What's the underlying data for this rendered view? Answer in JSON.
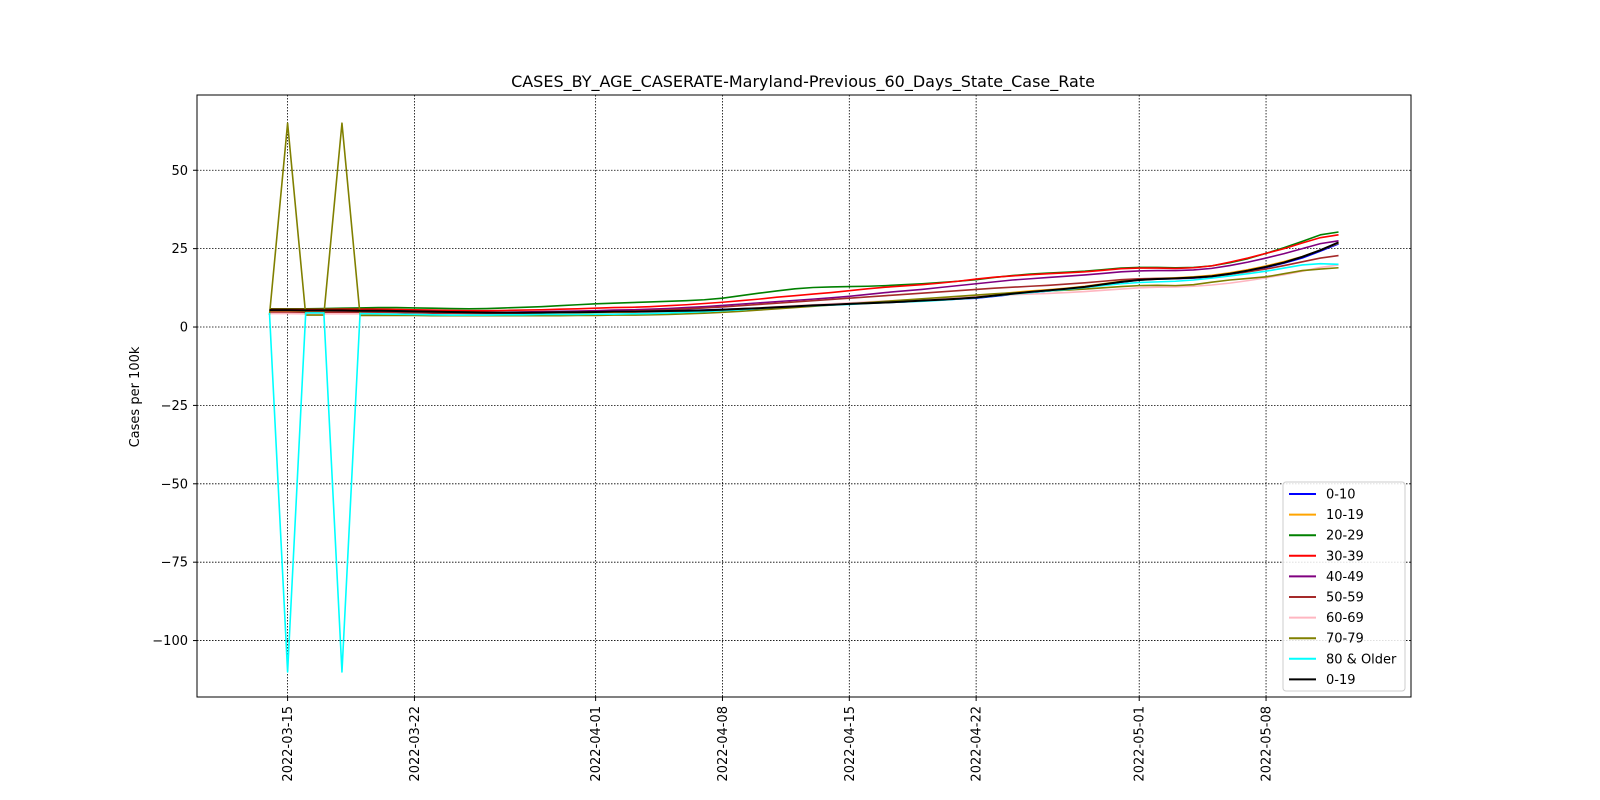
{
  "chart_data": {
    "type": "line",
    "title": "CASES_BY_AGE_CASERATE-Maryland-Previous_60_Days_State_Case_Rate",
    "xlabel": "",
    "ylabel": "Cases per 100k",
    "ylim": [
      -118,
      74
    ],
    "xlim": [
      "2022-03-10",
      "2022-05-16"
    ],
    "grid": true,
    "legend_position": "lower-right",
    "y_ticks": [
      50,
      25,
      0,
      -25,
      -50,
      -75,
      -100
    ],
    "y_tick_labels": [
      "50",
      "25",
      "0",
      "−25",
      "−50",
      "−75",
      "−100"
    ],
    "x_ticks": [
      "2022-03-15",
      "2022-03-22",
      "2022-04-01",
      "2022-04-08",
      "2022-04-15",
      "2022-04-22",
      "2022-05-01",
      "2022-05-08"
    ],
    "x_dates": [
      "2022-03-14",
      "2022-03-15",
      "2022-03-16",
      "2022-03-17",
      "2022-03-18",
      "2022-03-19",
      "2022-03-20",
      "2022-03-21",
      "2022-03-22",
      "2022-03-23",
      "2022-03-24",
      "2022-03-25",
      "2022-03-26",
      "2022-03-27",
      "2022-03-28",
      "2022-03-29",
      "2022-03-30",
      "2022-03-31",
      "2022-04-01",
      "2022-04-02",
      "2022-04-03",
      "2022-04-04",
      "2022-04-05",
      "2022-04-06",
      "2022-04-07",
      "2022-04-08",
      "2022-04-09",
      "2022-04-10",
      "2022-04-11",
      "2022-04-12",
      "2022-04-13",
      "2022-04-14",
      "2022-04-15",
      "2022-04-16",
      "2022-04-17",
      "2022-04-18",
      "2022-04-19",
      "2022-04-20",
      "2022-04-21",
      "2022-04-22",
      "2022-04-23",
      "2022-04-24",
      "2022-04-25",
      "2022-04-26",
      "2022-04-27",
      "2022-04-28",
      "2022-04-29",
      "2022-04-30",
      "2022-05-01",
      "2022-05-02",
      "2022-05-03",
      "2022-05-04",
      "2022-05-05",
      "2022-05-06",
      "2022-05-07",
      "2022-05-08",
      "2022-05-09",
      "2022-05-10",
      "2022-05-11",
      "2022-05-12"
    ],
    "series": [
      {
        "name": "0-10",
        "color": "#0000ff",
        "values": [
          5.5,
          5.5,
          5.4,
          5.4,
          5.4,
          5.3,
          5.3,
          5.2,
          5.1,
          5.0,
          4.9,
          4.8,
          4.7,
          4.7,
          4.7,
          4.7,
          4.8,
          4.8,
          4.9,
          5.0,
          5.0,
          5.1,
          5.2,
          5.3,
          5.4,
          5.6,
          5.8,
          6.0,
          6.3,
          6.6,
          6.9,
          7.1,
          7.4,
          7.6,
          7.8,
          8.0,
          8.3,
          8.6,
          8.9,
          9.2,
          9.8,
          10.4,
          11.0,
          11.5,
          12.0,
          12.6,
          13.4,
          14.3,
          15.0,
          15.3,
          15.4,
          15.6,
          16.0,
          16.8,
          17.8,
          19.0,
          20.4,
          22.0,
          24.2,
          26.5
        ]
      },
      {
        "name": "10-19",
        "color": "#ffa500",
        "values": [
          5.0,
          4.9,
          4.9,
          4.8,
          4.8,
          4.8,
          4.7,
          4.7,
          4.6,
          4.5,
          4.5,
          4.4,
          4.4,
          4.4,
          4.4,
          4.4,
          4.5,
          4.5,
          4.6,
          4.7,
          4.7,
          4.8,
          4.9,
          5.0,
          5.2,
          5.4,
          5.7,
          6.0,
          6.3,
          6.6,
          6.9,
          7.1,
          7.4,
          7.6,
          7.9,
          8.2,
          8.5,
          8.9,
          9.3,
          9.8,
          10.4,
          11.0,
          11.5,
          11.9,
          12.4,
          13.0,
          13.8,
          14.6,
          15.2,
          15.5,
          15.7,
          16.0,
          16.5,
          17.3,
          18.3,
          19.5,
          20.9,
          22.5,
          24.5,
          26.8
        ]
      },
      {
        "name": "20-29",
        "color": "#008000",
        "values": [
          5.8,
          5.8,
          5.8,
          5.9,
          6.0,
          6.1,
          6.2,
          6.2,
          6.1,
          6.0,
          5.9,
          5.8,
          5.9,
          6.1,
          6.3,
          6.5,
          6.8,
          7.1,
          7.4,
          7.6,
          7.8,
          8.0,
          8.2,
          8.4,
          8.7,
          9.2,
          10.0,
          10.8,
          11.5,
          12.2,
          12.6,
          12.8,
          12.9,
          13.0,
          13.2,
          13.5,
          13.8,
          14.2,
          14.6,
          15.1,
          15.8,
          16.4,
          16.9,
          17.2,
          17.5,
          17.8,
          18.3,
          18.8,
          19.0,
          19.0,
          18.9,
          19.0,
          19.5,
          20.5,
          21.8,
          23.5,
          25.3,
          27.3,
          29.4,
          30.3
        ]
      },
      {
        "name": "30-39",
        "color": "#ff0000",
        "values": [
          5.6,
          5.6,
          5.6,
          5.6,
          5.7,
          5.7,
          5.7,
          5.6,
          5.5,
          5.4,
          5.3,
          5.2,
          5.2,
          5.3,
          5.4,
          5.5,
          5.7,
          5.8,
          6.0,
          6.2,
          6.3,
          6.5,
          6.8,
          7.1,
          7.5,
          7.9,
          8.4,
          8.9,
          9.5,
          10.0,
          10.5,
          11.0,
          11.6,
          12.2,
          12.7,
          13.1,
          13.5,
          14.0,
          14.6,
          15.3,
          15.9,
          16.3,
          16.7,
          17.0,
          17.3,
          17.6,
          18.1,
          18.6,
          18.8,
          18.8,
          18.7,
          18.9,
          19.5,
          20.7,
          22.0,
          23.5,
          25.0,
          26.8,
          28.5,
          29.4
        ]
      },
      {
        "name": "40-49",
        "color": "#800080",
        "values": [
          5.3,
          5.3,
          5.3,
          5.2,
          5.2,
          5.2,
          5.2,
          5.1,
          5.0,
          4.9,
          4.8,
          4.7,
          4.7,
          4.7,
          4.8,
          4.9,
          5.0,
          5.1,
          5.2,
          5.4,
          5.5,
          5.7,
          5.9,
          6.2,
          6.5,
          6.9,
          7.3,
          7.7,
          8.1,
          8.5,
          8.9,
          9.3,
          9.8,
          10.4,
          11.0,
          11.5,
          12.0,
          12.6,
          13.2,
          13.8,
          14.4,
          15.0,
          15.4,
          15.8,
          16.2,
          16.6,
          17.1,
          17.6,
          17.9,
          18.0,
          18.0,
          18.2,
          18.7,
          19.6,
          20.7,
          22.0,
          23.4,
          25.0,
          26.6,
          27.5
        ]
      },
      {
        "name": "50-59",
        "color": "#a52a2a",
        "values": [
          4.6,
          4.6,
          4.6,
          4.6,
          4.7,
          4.7,
          4.7,
          4.6,
          4.5,
          4.4,
          4.4,
          4.3,
          4.3,
          4.3,
          4.4,
          4.5,
          4.6,
          4.7,
          4.8,
          4.9,
          5.1,
          5.3,
          5.5,
          5.8,
          6.1,
          6.4,
          6.8,
          7.2,
          7.6,
          8.0,
          8.4,
          8.8,
          9.2,
          9.6,
          10.0,
          10.4,
          10.8,
          11.2,
          11.6,
          12.0,
          12.4,
          12.7,
          13.0,
          13.3,
          13.7,
          14.1,
          14.6,
          15.1,
          15.4,
          15.5,
          15.5,
          15.7,
          16.1,
          16.8,
          17.6,
          18.5,
          19.6,
          20.8,
          22.0,
          22.8
        ]
      },
      {
        "name": "60-69",
        "color": "#ffb6c1",
        "values": [
          4.3,
          4.3,
          4.2,
          4.2,
          4.2,
          4.2,
          4.1,
          4.1,
          4.0,
          3.9,
          3.9,
          3.8,
          3.8,
          3.8,
          3.8,
          3.9,
          3.9,
          4.0,
          4.1,
          4.2,
          4.3,
          4.5,
          4.7,
          4.9,
          5.2,
          5.5,
          5.8,
          6.1,
          6.5,
          6.8,
          7.1,
          7.4,
          7.7,
          8.0,
          8.3,
          8.6,
          8.9,
          9.2,
          9.5,
          9.8,
          10.1,
          10.3,
          10.5,
          10.7,
          11.0,
          11.3,
          11.7,
          12.1,
          12.5,
          12.7,
          12.8,
          13.0,
          13.4,
          14.0,
          14.8,
          15.7,
          16.7,
          17.8,
          19.0,
          19.8
        ]
      },
      {
        "name": "70-79",
        "color": "#808000",
        "values": [
          3.8,
          65.0,
          3.8,
          3.8,
          65.0,
          3.7,
          3.7,
          3.7,
          3.7,
          3.6,
          3.6,
          3.6,
          3.6,
          3.6,
          3.6,
          3.6,
          3.6,
          3.7,
          3.7,
          3.8,
          3.8,
          3.9,
          4.0,
          4.2,
          4.4,
          4.7,
          5.0,
          5.4,
          5.8,
          6.2,
          6.6,
          7.0,
          7.4,
          7.8,
          8.2,
          8.6,
          9.0,
          9.4,
          9.8,
          10.2,
          10.6,
          10.9,
          11.2,
          11.5,
          11.8,
          12.1,
          12.5,
          12.9,
          13.2,
          13.3,
          13.2,
          13.5,
          14.3,
          15.0,
          15.5,
          16.0,
          17.0,
          18.0,
          18.5,
          18.9
        ]
      },
      {
        "name": "80 & Older",
        "color": "#00ffff",
        "values": [
          4.5,
          -110.0,
          4.5,
          4.5,
          -110.0,
          4.3,
          4.2,
          4.1,
          4.0,
          3.9,
          3.8,
          3.8,
          3.8,
          3.9,
          3.9,
          4.0,
          4.0,
          4.0,
          4.1,
          4.1,
          4.2,
          4.3,
          4.5,
          4.7,
          4.9,
          5.2,
          5.5,
          5.9,
          6.3,
          6.6,
          6.8,
          7.0,
          7.2,
          7.5,
          7.8,
          8.0,
          8.2,
          8.5,
          8.9,
          9.3,
          9.9,
          10.5,
          11.0,
          11.5,
          12.0,
          12.6,
          13.2,
          13.8,
          14.2,
          14.4,
          14.6,
          15.0,
          15.6,
          16.3,
          17.0,
          17.8,
          18.8,
          19.8,
          20.2,
          20.0
        ]
      },
      {
        "name": "0-19",
        "color": "#000000",
        "values": [
          5.4,
          5.4,
          5.3,
          5.3,
          5.3,
          5.2,
          5.2,
          5.1,
          5.0,
          4.9,
          4.8,
          4.7,
          4.6,
          4.6,
          4.6,
          4.6,
          4.7,
          4.7,
          4.8,
          4.9,
          4.9,
          5.0,
          5.1,
          5.2,
          5.3,
          5.5,
          5.8,
          6.0,
          6.3,
          6.6,
          6.9,
          7.1,
          7.4,
          7.6,
          7.8,
          8.1,
          8.4,
          8.7,
          9.0,
          9.4,
          10.0,
          10.6,
          11.2,
          11.7,
          12.2,
          12.8,
          13.6,
          14.4,
          15.0,
          15.3,
          15.5,
          15.8,
          16.2,
          17.0,
          18.0,
          19.2,
          20.6,
          22.4,
          24.5,
          27.0
        ]
      }
    ]
  }
}
